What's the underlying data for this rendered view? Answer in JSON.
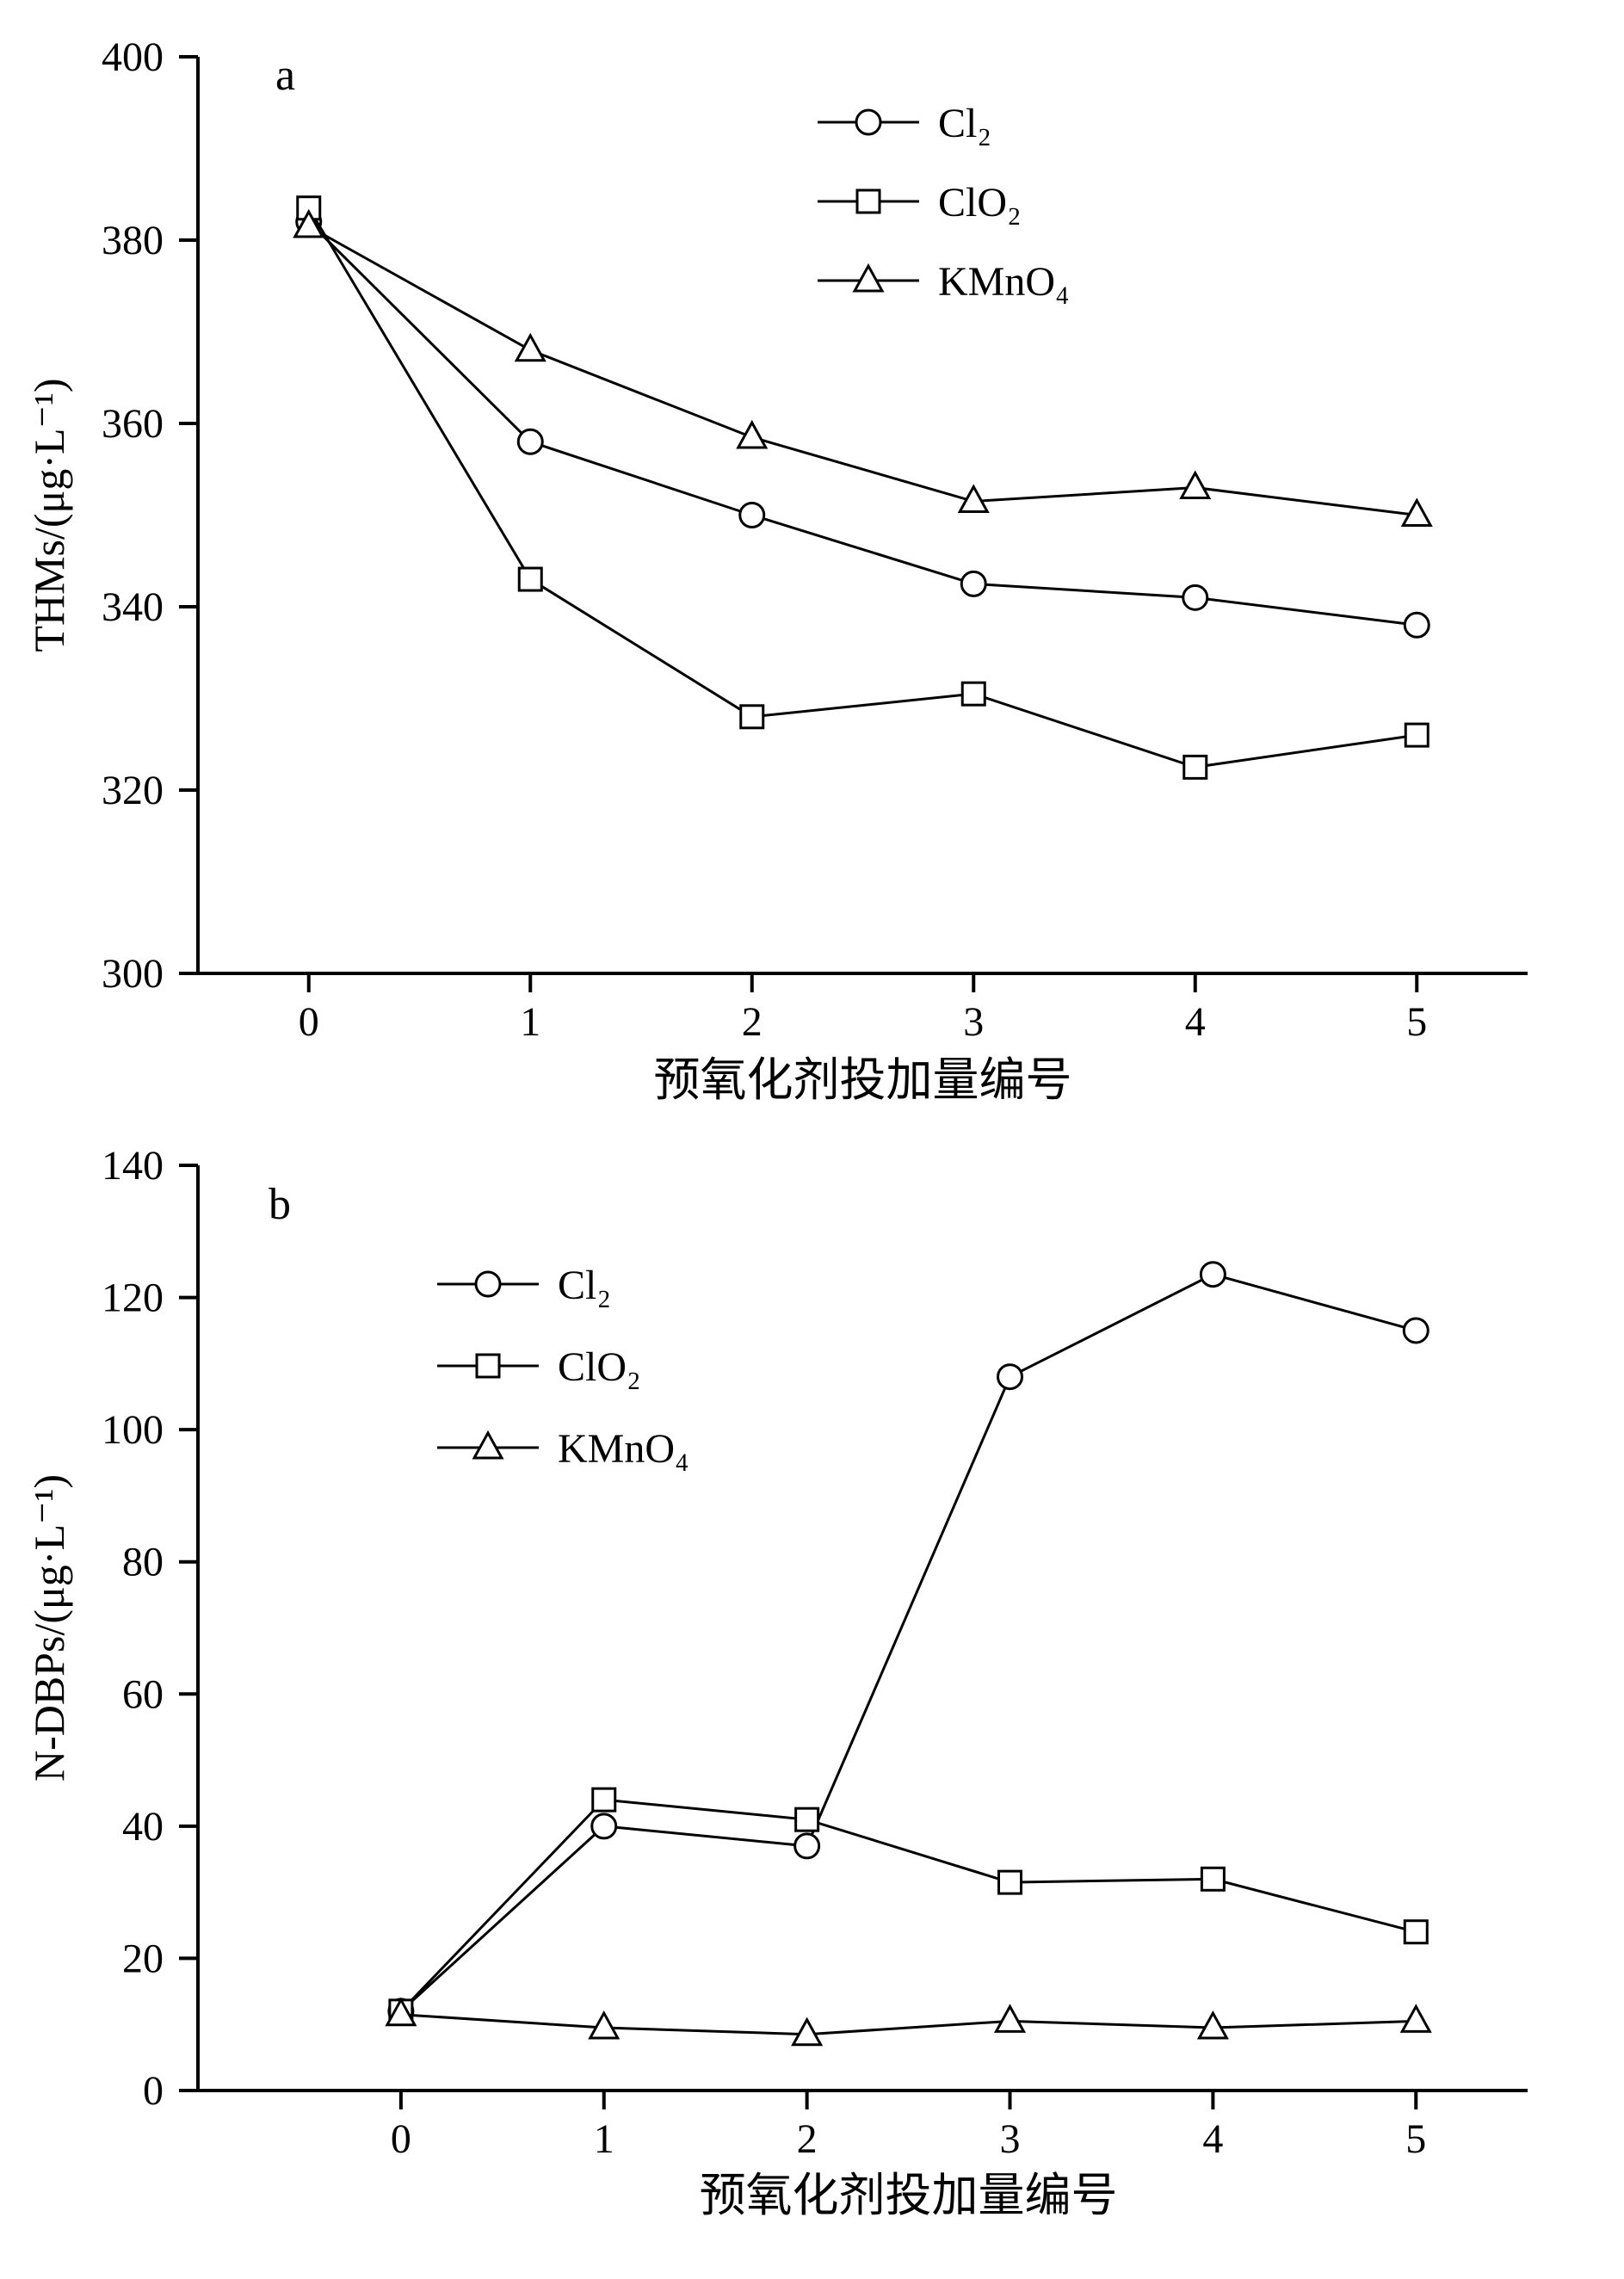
{
  "page": {
    "background": "#ffffff",
    "line_color": "#000000"
  },
  "chart_data": [
    {
      "type": "line",
      "panel_label": "a",
      "title": "",
      "xlabel": "预氧化剂投加量编号",
      "ylabel": "THMs/(μg·L⁻¹)",
      "x": [
        0,
        1,
        2,
        3,
        4,
        5
      ],
      "xticks": [
        0,
        1,
        2,
        3,
        4,
        5
      ],
      "yticks": [
        300,
        320,
        340,
        360,
        380,
        400
      ],
      "xlim": [
        -0.5,
        5.5
      ],
      "ylim": [
        300,
        400
      ],
      "grid": false,
      "legend_position": "upper-center-right",
      "series": [
        {
          "name": "Cl₂",
          "marker": "circle",
          "values": [
            382,
            358,
            350,
            342.5,
            341,
            338
          ]
        },
        {
          "name": "ClO₂",
          "marker": "square",
          "values": [
            383.5,
            343,
            328,
            330.5,
            322.5,
            326
          ]
        },
        {
          "name": "KMnO₄",
          "marker": "triangle",
          "values": [
            381.5,
            368,
            358.5,
            351.5,
            353,
            350
          ]
        }
      ]
    },
    {
      "type": "line",
      "panel_label": "b",
      "title": "",
      "xlabel": "预氧化剂投加量编号",
      "ylabel": "N-DBPs/(μg·L⁻¹)",
      "x": [
        0,
        1,
        2,
        3,
        4,
        5
      ],
      "xticks": [
        0,
        1,
        2,
        3,
        4,
        5
      ],
      "yticks": [
        0,
        20,
        40,
        60,
        80,
        100,
        120,
        140
      ],
      "xlim": [
        -1.0,
        5.55
      ],
      "ylim": [
        0,
        140
      ],
      "grid": false,
      "legend_position": "upper-left",
      "series": [
        {
          "name": "Cl₂",
          "marker": "circle",
          "values": [
            12,
            40,
            37,
            108,
            123.5,
            115
          ]
        },
        {
          "name": "ClO₂",
          "marker": "square",
          "values": [
            12,
            44,
            41,
            31.5,
            32,
            24
          ]
        },
        {
          "name": "KMnO₄",
          "marker": "triangle",
          "values": [
            11.5,
            9.5,
            8.5,
            10.5,
            9.5,
            10.5
          ]
        }
      ]
    }
  ]
}
